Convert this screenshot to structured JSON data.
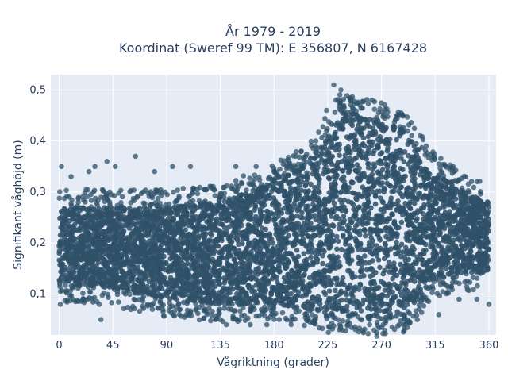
{
  "chart_data": {
    "type": "scatter",
    "title_line1": "År 1979 - 2019",
    "title_line2": "Koordinat (Sweref 99 TM): E 356807, N 6167428",
    "xlabel": "Vågriktning (grader)",
    "ylabel": "Signifikant våghöjd (m)",
    "xlim": [
      -7,
      366
    ],
    "ylim": [
      0.02,
      0.53
    ],
    "x_ticks": [
      0,
      45,
      90,
      135,
      180,
      225,
      270,
      315,
      360
    ],
    "y_ticks": [
      0.1,
      0.2,
      0.3,
      0.4,
      0.5
    ],
    "y_tick_labels": [
      "0,1",
      "0,2",
      "0,3",
      "0,4",
      "0,5"
    ],
    "grid": true,
    "legend": "none",
    "colors": {
      "background": "#e5ecf6",
      "grid": "#ffffff",
      "marker": "#2f5168"
    },
    "envelope": [
      {
        "x": 0,
        "lo": 0.12,
        "hi": 0.27
      },
      {
        "x": 45,
        "lo": 0.11,
        "hi": 0.27
      },
      {
        "x": 90,
        "lo": 0.09,
        "hi": 0.27
      },
      {
        "x": 135,
        "lo": 0.08,
        "hi": 0.28
      },
      {
        "x": 180,
        "lo": 0.08,
        "hi": 0.32
      },
      {
        "x": 210,
        "lo": 0.07,
        "hi": 0.36
      },
      {
        "x": 225,
        "lo": 0.06,
        "hi": 0.42
      },
      {
        "x": 235,
        "lo": 0.06,
        "hi": 0.46
      },
      {
        "x": 250,
        "lo": 0.06,
        "hi": 0.45
      },
      {
        "x": 270,
        "lo": 0.05,
        "hi": 0.44
      },
      {
        "x": 290,
        "lo": 0.06,
        "hi": 0.42
      },
      {
        "x": 315,
        "lo": 0.13,
        "hi": 0.34
      },
      {
        "x": 340,
        "lo": 0.14,
        "hi": 0.3
      },
      {
        "x": 360,
        "lo": 0.14,
        "hi": 0.28
      }
    ],
    "outliers": [
      {
        "x": 2,
        "y": 0.35
      },
      {
        "x": 10,
        "y": 0.33
      },
      {
        "x": 25,
        "y": 0.34
      },
      {
        "x": 30,
        "y": 0.35
      },
      {
        "x": 40,
        "y": 0.36
      },
      {
        "x": 47,
        "y": 0.35
      },
      {
        "x": 64,
        "y": 0.37
      },
      {
        "x": 80,
        "y": 0.34
      },
      {
        "x": 95,
        "y": 0.35
      },
      {
        "x": 110,
        "y": 0.35
      },
      {
        "x": 148,
        "y": 0.35
      },
      {
        "x": 165,
        "y": 0.35
      },
      {
        "x": 215,
        "y": 0.4
      },
      {
        "x": 224,
        "y": 0.46
      },
      {
        "x": 230,
        "y": 0.51
      },
      {
        "x": 236,
        "y": 0.5
      },
      {
        "x": 252,
        "y": 0.47
      },
      {
        "x": 262,
        "y": 0.48
      },
      {
        "x": 320,
        "y": 0.34
      },
      {
        "x": 330,
        "y": 0.35
      },
      {
        "x": 1,
        "y": 0.08
      },
      {
        "x": 20,
        "y": 0.09
      },
      {
        "x": 35,
        "y": 0.05
      },
      {
        "x": 60,
        "y": 0.07
      },
      {
        "x": 100,
        "y": 0.08
      },
      {
        "x": 135,
        "y": 0.05
      },
      {
        "x": 140,
        "y": 0.04
      },
      {
        "x": 160,
        "y": 0.04
      },
      {
        "x": 174,
        "y": 0.04
      },
      {
        "x": 235,
        "y": 0.04
      },
      {
        "x": 260,
        "y": 0.04
      },
      {
        "x": 285,
        "y": 0.04
      },
      {
        "x": 300,
        "y": 0.05
      },
      {
        "x": 318,
        "y": 0.06
      },
      {
        "x": 335,
        "y": 0.09
      },
      {
        "x": 350,
        "y": 0.09
      },
      {
        "x": 360,
        "y": 0.08
      }
    ]
  }
}
